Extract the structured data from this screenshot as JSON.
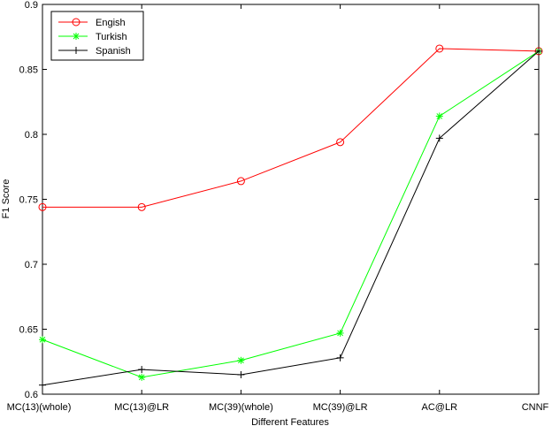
{
  "chart_data": {
    "type": "line",
    "xlabel": "Different Features",
    "ylabel": "F1 Score",
    "categories": [
      "MC(13)(whole)",
      "MC(13)@LR",
      "MC(39)(whole)",
      "MC(39)@LR",
      "AC@LR",
      "CNNF"
    ],
    "ylim": [
      0.6,
      0.9
    ],
    "yticks": [
      "0.6",
      "0.65",
      "0.7",
      "0.75",
      "0.8",
      "0.85",
      "0.9"
    ],
    "grid": false,
    "legend_position": "top-left",
    "series": [
      {
        "name": "Engish",
        "color": "#ff0000",
        "marker": "circle",
        "values": [
          0.744,
          0.744,
          0.764,
          0.794,
          0.866,
          0.864
        ]
      },
      {
        "name": "Turkish",
        "color": "#00ff00",
        "marker": "asterisk",
        "values": [
          0.642,
          0.613,
          0.626,
          0.647,
          0.814,
          0.864
        ]
      },
      {
        "name": "Spanish",
        "color": "#000000",
        "marker": "plus",
        "values": [
          0.607,
          0.619,
          0.615,
          0.628,
          0.797,
          0.864
        ]
      }
    ]
  }
}
